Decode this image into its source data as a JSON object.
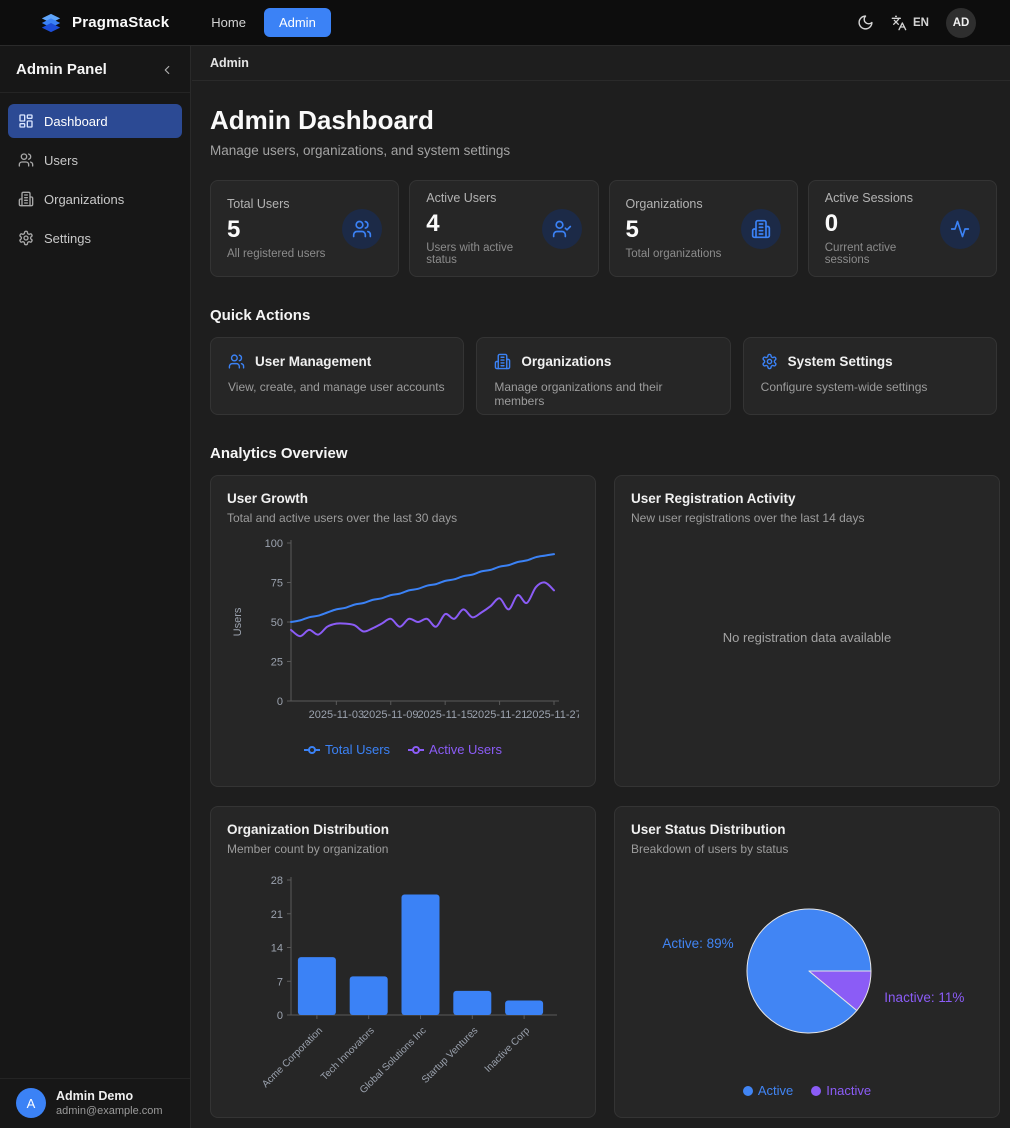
{
  "navbar": {
    "brand": "PragmaStack",
    "nav": [
      {
        "label": "Home",
        "active": false
      },
      {
        "label": "Admin",
        "active": true
      }
    ],
    "language": "EN",
    "avatar_initials": "AD"
  },
  "sidebar": {
    "title": "Admin Panel",
    "items": [
      {
        "label": "Dashboard",
        "icon": "dashboard-icon",
        "active": true
      },
      {
        "label": "Users",
        "icon": "users-icon",
        "active": false
      },
      {
        "label": "Organizations",
        "icon": "building-icon",
        "active": false
      },
      {
        "label": "Settings",
        "icon": "settings-icon",
        "active": false
      }
    ],
    "user": {
      "initial": "A",
      "name": "Admin Demo",
      "email": "admin@example.com"
    }
  },
  "breadcrumb": "Admin",
  "page": {
    "title": "Admin Dashboard",
    "subtitle": "Manage users, organizations, and system settings"
  },
  "stats": [
    {
      "label": "Total Users",
      "value": "5",
      "description": "All registered users",
      "icon": "users-icon"
    },
    {
      "label": "Active Users",
      "value": "4",
      "description": "Users with active status",
      "icon": "user-check-icon"
    },
    {
      "label": "Organizations",
      "value": "5",
      "description": "Total organizations",
      "icon": "building-icon"
    },
    {
      "label": "Active Sessions",
      "value": "0",
      "description": "Current active sessions",
      "icon": "activity-icon"
    }
  ],
  "quick_actions": {
    "heading": "Quick Actions",
    "cards": [
      {
        "title": "User Management",
        "description": "View, create, and manage user accounts",
        "icon": "users-icon"
      },
      {
        "title": "Organizations",
        "description": "Manage organizations and their members",
        "icon": "building-icon"
      },
      {
        "title": "System Settings",
        "description": "Configure system-wide settings",
        "icon": "settings-icon"
      }
    ]
  },
  "analytics_heading": "Analytics Overview",
  "colors": {
    "accent_blue": "#3b82f6",
    "accent_purple": "#8b5cf6",
    "active_nav_bg": "#2c4a94",
    "stat_icon_bg": "#1c2a47",
    "axis_text": "#9ca3af",
    "axis_line": "#5a5a5a"
  },
  "chart_data": [
    {
      "type": "line",
      "title": "User Growth",
      "subtitle": "Total and active users over the last 30 days",
      "ylabel": "Users",
      "ylim": [
        0,
        100
      ],
      "yticks": [
        0,
        25,
        50,
        75,
        100
      ],
      "xticks": [
        "2025-11-03",
        "2025-11-09",
        "2025-11-15",
        "2025-11-21",
        "2025-11-27"
      ],
      "xtick_positions": [
        5,
        11,
        17,
        23,
        29
      ],
      "n_points": 30,
      "legend_position": "bottom",
      "grid": false,
      "series": [
        {
          "name": "Total Users",
          "color": "#3b82f6",
          "values": [
            50,
            51,
            53,
            54,
            56,
            58,
            59,
            61,
            62,
            64,
            65,
            67,
            68,
            70,
            71,
            73,
            74,
            76,
            77,
            79,
            80,
            82,
            83,
            85,
            86,
            88,
            89,
            91,
            92,
            93
          ]
        },
        {
          "name": "Active Users",
          "color": "#8b5cf6",
          "values": [
            45,
            41,
            45,
            42,
            47,
            49,
            49,
            48,
            44,
            46,
            49,
            52,
            47,
            52,
            50,
            52,
            47,
            55,
            52,
            58,
            53,
            56,
            60,
            65,
            58,
            67,
            62,
            72,
            75,
            70
          ]
        }
      ]
    },
    {
      "type": "empty",
      "title": "User Registration Activity",
      "subtitle": "New user registrations over the last 14 days",
      "empty_message": "No registration data available"
    },
    {
      "type": "bar",
      "title": "Organization Distribution",
      "subtitle": "Member count by organization",
      "categories": [
        "Acme Corporation",
        "Tech Innovators",
        "Global Solutions Inc",
        "Startup Ventures",
        "Inactive Corp"
      ],
      "values": [
        12,
        8,
        25,
        5,
        3
      ],
      "bar_color": "#3b82f6",
      "ylim": [
        0,
        28
      ],
      "yticks": [
        0,
        7,
        14,
        21,
        28
      ],
      "grid": false
    },
    {
      "type": "pie",
      "title": "User Status Distribution",
      "subtitle": "Breakdown of users by status",
      "slices": [
        {
          "name": "Active",
          "pct": 89,
          "color": "#4185f4",
          "label": "Active: 89%"
        },
        {
          "name": "Inactive",
          "pct": 11,
          "color": "#8b5cf6",
          "label": "Inactive: 11%"
        }
      ],
      "legend_position": "bottom"
    }
  ]
}
